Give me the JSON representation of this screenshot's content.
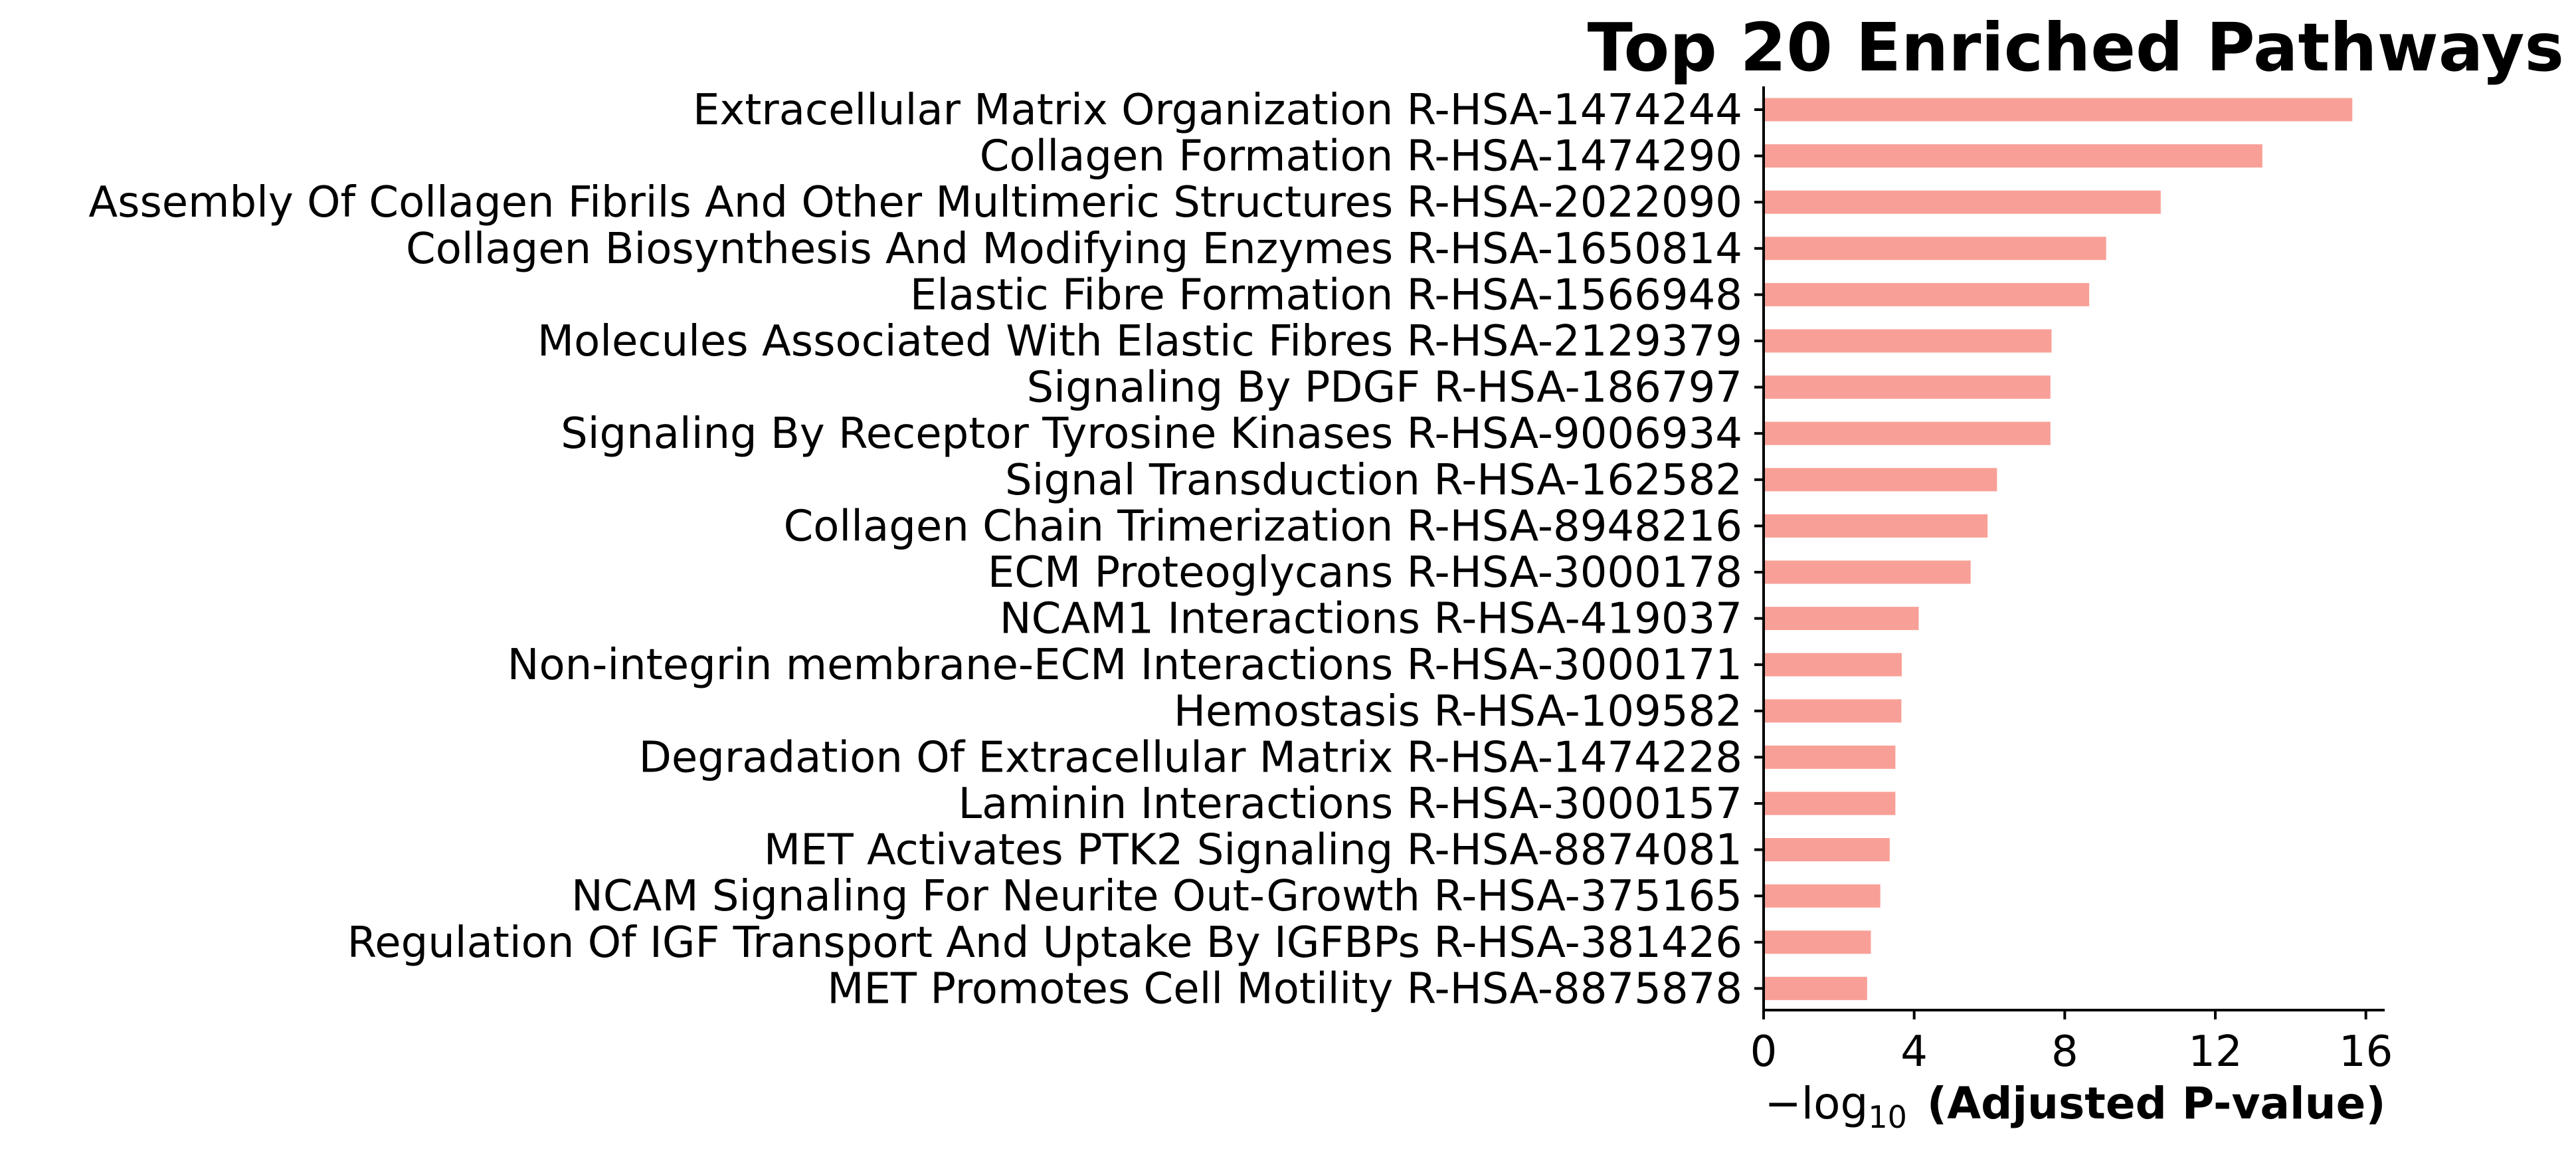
{
  "chart_data": {
    "type": "bar",
    "orientation": "horizontal",
    "title": "Top 20 Enriched Pathways",
    "xlabel_prefix": "−log",
    "xlabel_sub": "10",
    "xlabel_rest": "(Adjusted P-value)",
    "xlim": [
      0,
      16.5
    ],
    "xticks": [
      0,
      4,
      8,
      12,
      16
    ],
    "bar_color": "#f8a097",
    "grid": false,
    "categories": [
      "Extracellular Matrix Organization R-HSA-1474244",
      "Collagen Formation R-HSA-1474290",
      "Assembly Of Collagen Fibrils And Other Multimeric Structures R-HSA-2022090",
      "Collagen Biosynthesis And Modifying Enzymes R-HSA-1650814",
      "Elastic Fibre Formation R-HSA-1566948",
      "Molecules Associated With Elastic Fibres R-HSA-2129379",
      "Signaling By PDGF R-HSA-186797",
      "Signaling By Receptor Tyrosine Kinases R-HSA-9006934",
      "Signal Transduction R-HSA-162582",
      "Collagen Chain Trimerization R-HSA-8948216",
      "ECM Proteoglycans R-HSA-3000178",
      "NCAM1 Interactions R-HSA-419037",
      "Non-integrin membrane-ECM Interactions R-HSA-3000171",
      "Hemostasis R-HSA-109582",
      "Degradation Of Extracellular Matrix R-HSA-1474228",
      "Laminin Interactions R-HSA-3000157",
      "MET Activates PTK2 Signaling R-HSA-8874081",
      "NCAM Signaling For Neurite Out-Growth R-HSA-375165",
      "Regulation Of IGF Transport And Uptake By IGFBPs R-HSA-381426",
      "MET Promotes Cell Motility R-HSA-8875878"
    ],
    "values": [
      15.64,
      13.25,
      10.55,
      9.1,
      8.65,
      7.65,
      7.62,
      7.62,
      6.2,
      5.95,
      5.5,
      4.12,
      3.67,
      3.66,
      3.5,
      3.5,
      3.35,
      3.1,
      2.85,
      2.75
    ]
  }
}
